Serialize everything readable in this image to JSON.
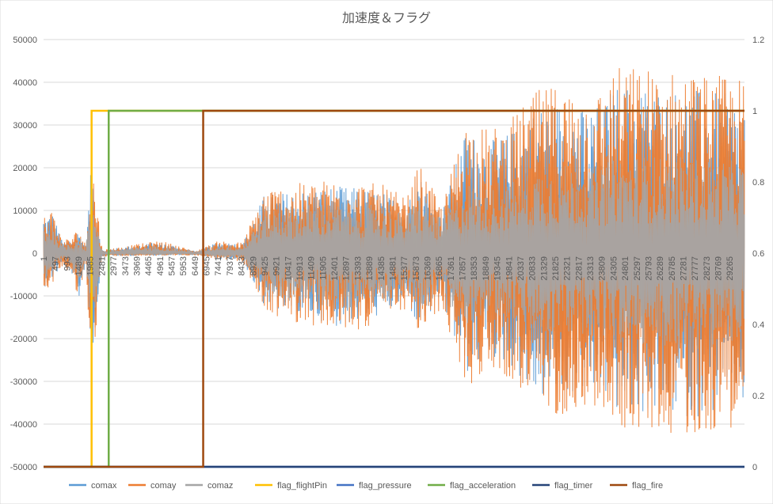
{
  "chart_data": {
    "type": "line",
    "title": "加速度＆フラグ",
    "y_left": {
      "min": -50000,
      "max": 50000,
      "ticks": [
        "-50000",
        "-40000",
        "-30000",
        "-20000",
        "-10000",
        "0",
        "10000",
        "20000",
        "30000",
        "40000",
        "50000"
      ]
    },
    "y_right": {
      "min": 0,
      "max": 1.2,
      "ticks": [
        "0",
        "0.2",
        "0.4",
        "0.6",
        "0.8",
        "1",
        "1.2"
      ]
    },
    "x": {
      "min": 1,
      "max": 29900,
      "tick_start": 1,
      "tick_step": 496
    },
    "x_tick_labels": [
      "1",
      "497",
      "993",
      "1489",
      "1985",
      "2481",
      "2977",
      "3473",
      "3969",
      "4465",
      "4961",
      "5457",
      "5953",
      "6449",
      "6945",
      "7441",
      "7937",
      "8433",
      "8929",
      "9425",
      "9921",
      "10417",
      "10913",
      "11409",
      "11905",
      "12401",
      "12897",
      "13393",
      "13889",
      "14385",
      "14881",
      "15377",
      "15873",
      "16369",
      "16865",
      "17361",
      "17857",
      "18353",
      "18849",
      "19345",
      "19841",
      "20337",
      "20833",
      "21329",
      "21825",
      "22321",
      "22817",
      "23313",
      "23809",
      "24305",
      "24801",
      "25297",
      "25793",
      "26289",
      "26785",
      "27281",
      "27777",
      "28273",
      "28769",
      "29265"
    ],
    "series": [
      {
        "name": "comax",
        "color": "#5b9bd5",
        "axis": "left"
      },
      {
        "name": "comay",
        "color": "#ed7d31",
        "axis": "left"
      },
      {
        "name": "comaz",
        "color": "#a5a5a5",
        "axis": "left"
      },
      {
        "name": "flag_flightPin",
        "color": "#ffc000",
        "axis": "right",
        "steps": [
          [
            1,
            0
          ],
          [
            2050,
            1
          ]
        ]
      },
      {
        "name": "flag_pressure",
        "color": "#4472c4",
        "axis": "right",
        "steps": [
          [
            1,
            0
          ]
        ]
      },
      {
        "name": "flag_acceleration",
        "color": "#70ad47",
        "axis": "right",
        "steps": [
          [
            1,
            0
          ],
          [
            2780,
            1
          ]
        ]
      },
      {
        "name": "flag_timer",
        "color": "#264478",
        "axis": "right",
        "steps": [
          [
            1,
            0
          ]
        ]
      },
      {
        "name": "flag_fire",
        "color": "#9e480e",
        "axis": "right",
        "steps": [
          [
            1,
            0
          ],
          [
            6810,
            1
          ]
        ]
      }
    ],
    "acceleration_envelope": [
      {
        "x": 1,
        "lo": -9000,
        "hi": 10000
      },
      {
        "x": 400,
        "lo": -7000,
        "hi": 10500
      },
      {
        "x": 800,
        "lo": -3000,
        "hi": 3000
      },
      {
        "x": 1200,
        "lo": -5000,
        "hi": 4000
      },
      {
        "x": 1500,
        "lo": -13000,
        "hi": 6000
      },
      {
        "x": 1800,
        "lo": -2000,
        "hi": 2000
      },
      {
        "x": 2050,
        "lo": -30000,
        "hi": 24000
      },
      {
        "x": 2500,
        "lo": -800,
        "hi": 800
      },
      {
        "x": 5000,
        "lo": -600,
        "hi": 3000
      },
      {
        "x": 6500,
        "lo": -500,
        "hi": 500
      },
      {
        "x": 7500,
        "lo": -1500,
        "hi": 3000
      },
      {
        "x": 8500,
        "lo": -2000,
        "hi": 2500
      },
      {
        "x": 9425,
        "lo": -14000,
        "hi": 15500
      },
      {
        "x": 10500,
        "lo": -16000,
        "hi": 16000
      },
      {
        "x": 11500,
        "lo": -17000,
        "hi": 17000
      },
      {
        "x": 12500,
        "lo": -19000,
        "hi": 17500
      },
      {
        "x": 13500,
        "lo": -18000,
        "hi": 17000
      },
      {
        "x": 14500,
        "lo": -16000,
        "hi": 16000
      },
      {
        "x": 15500,
        "lo": -13000,
        "hi": 13000
      },
      {
        "x": 16000,
        "lo": -20000,
        "hi": 21000
      },
      {
        "x": 17000,
        "lo": -13000,
        "hi": 11000
      },
      {
        "x": 18000,
        "lo": -32000,
        "hi": 32000
      },
      {
        "x": 19000,
        "lo": -27000,
        "hi": 29000
      },
      {
        "x": 20000,
        "lo": -30000,
        "hi": 32000
      },
      {
        "x": 21000,
        "lo": -38000,
        "hi": 38000
      },
      {
        "x": 22000,
        "lo": -38000,
        "hi": 40000
      },
      {
        "x": 23000,
        "lo": -36000,
        "hi": 38000
      },
      {
        "x": 23900,
        "lo": -38000,
        "hi": 39000
      },
      {
        "x": 24300,
        "lo": -41000,
        "hi": 44000
      },
      {
        "x": 25500,
        "lo": -42000,
        "hi": 44000
      },
      {
        "x": 26500,
        "lo": -42000,
        "hi": 43000
      },
      {
        "x": 27500,
        "lo": -43000,
        "hi": 43000
      },
      {
        "x": 28500,
        "lo": -42000,
        "hi": 42000
      },
      {
        "x": 29900,
        "lo": -40000,
        "hi": 41000
      }
    ]
  }
}
